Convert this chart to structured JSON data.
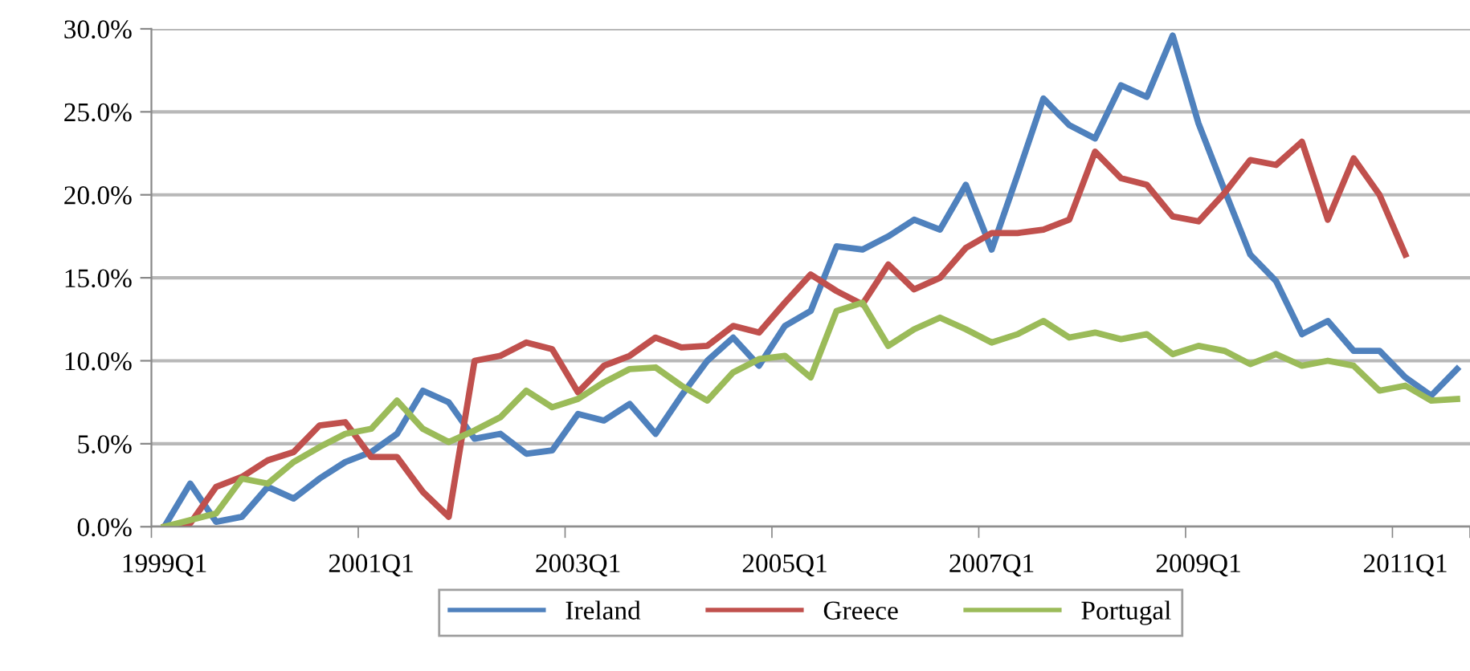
{
  "chart_data": {
    "type": "line",
    "categories": [
      "1999Q1",
      null,
      null,
      null,
      null,
      null,
      null,
      null,
      "2001Q1",
      null,
      null,
      null,
      null,
      null,
      null,
      null,
      "2003Q1",
      null,
      null,
      null,
      null,
      null,
      null,
      null,
      "2005Q1",
      null,
      null,
      null,
      null,
      null,
      null,
      null,
      "2007Q1",
      null,
      null,
      null,
      null,
      null,
      null,
      null,
      "2009Q1",
      null,
      null,
      null,
      null,
      null,
      null,
      null,
      "2011Q1",
      null,
      null
    ],
    "series": [
      {
        "name": "Ireland",
        "color": "#4f81bd",
        "values": [
          0,
          2.6,
          0.3,
          0.6,
          2.4,
          1.7,
          2.9,
          3.9,
          4.5,
          5.6,
          8.2,
          7.5,
          5.3,
          5.6,
          4.4,
          4.6,
          6.8,
          6.4,
          7.4,
          5.6,
          7.9,
          10.0,
          11.4,
          9.7,
          12.1,
          13.0,
          16.9,
          16.7,
          17.5,
          18.5,
          17.9,
          20.6,
          16.7,
          21.2,
          25.8,
          24.2,
          23.4,
          26.6,
          25.9,
          29.6,
          24.3,
          20.3,
          16.4,
          14.8,
          11.6,
          12.4,
          10.6,
          10.6,
          9.0,
          7.9,
          9.5
        ]
      },
      {
        "name": "Greece",
        "color": "#c0504d",
        "values": [
          0,
          0.2,
          2.4,
          3.0,
          4.0,
          4.5,
          6.1,
          6.3,
          4.2,
          4.2,
          2.1,
          0.6,
          10.0,
          10.3,
          11.1,
          10.7,
          8.1,
          9.7,
          10.3,
          11.4,
          10.8,
          10.9,
          12.1,
          11.7,
          13.5,
          15.2,
          14.2,
          13.4,
          15.8,
          14.3,
          15.0,
          16.8,
          17.7,
          17.7,
          17.9,
          18.5,
          22.6,
          21.0,
          20.6,
          18.7,
          18.4,
          20.1,
          22.1,
          21.8,
          23.2,
          18.5,
          22.2,
          20.0,
          16.4,
          null,
          null
        ]
      },
      {
        "name": "Portugal",
        "color": "#9bbb59",
        "values": [
          0,
          0.4,
          0.8,
          2.9,
          2.6,
          3.9,
          4.8,
          5.6,
          5.9,
          7.6,
          5.9,
          5.1,
          5.8,
          6.6,
          8.2,
          7.2,
          7.7,
          8.7,
          9.5,
          9.6,
          8.5,
          7.6,
          9.3,
          10.1,
          10.3,
          9.0,
          13.0,
          13.5,
          10.9,
          11.9,
          12.6,
          11.9,
          11.1,
          11.6,
          12.4,
          11.4,
          11.7,
          11.3,
          11.6,
          10.4,
          10.9,
          10.6,
          9.8,
          10.4,
          9.7,
          10.0,
          9.7,
          8.2,
          8.5,
          7.6,
          7.7
        ]
      }
    ],
    "ylim": [
      0,
      30
    ],
    "yticks": [
      {
        "value": 0,
        "label": "0.0%"
      },
      {
        "value": 5,
        "label": "5.0%"
      },
      {
        "value": 10,
        "label": "10.0%"
      },
      {
        "value": 15,
        "label": "15.0%"
      },
      {
        "value": 20,
        "label": "20.0%"
      },
      {
        "value": 25,
        "label": "25.0%"
      },
      {
        "value": 30,
        "label": "30.0%"
      }
    ],
    "grid": "y",
    "legend": "bottom",
    "marker": "none",
    "line_style": "solid"
  }
}
